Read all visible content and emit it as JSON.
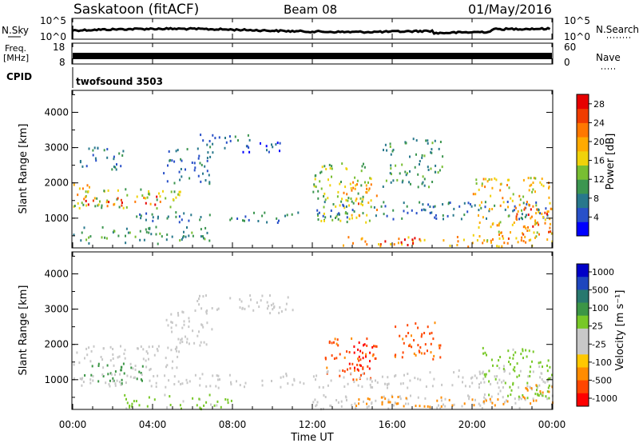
{
  "header": {
    "radar": "Saskatoon (fitACF)",
    "beam": "Beam 08",
    "date": "01/May/2016"
  },
  "strip": {
    "nsky_label": "N.Sky",
    "nsky_ticks": [
      "10^5",
      "10^0"
    ],
    "nsearch_label": "N.Search",
    "nsearch_ticks": [
      "10^5",
      "10^0"
    ],
    "freq_label": "Freq.",
    "freq_unit": "[MHz]",
    "freq_ticks": [
      "18",
      "8"
    ],
    "nave_label": "Nave",
    "nave_ticks": [
      "60",
      "0"
    ],
    "cpid_label": "CPID",
    "cpid_value": "twofsound 3503"
  },
  "colors": {
    "power_scale": [
      "#0000ff",
      "#2850c8",
      "#28788c",
      "#3c9650",
      "#78be32",
      "#f0d20a",
      "#ffaa00",
      "#ff7800",
      "#f03c00",
      "#e60000"
    ],
    "velocity_scale": [
      "#0000c8",
      "#1e46be",
      "#28786e",
      "#3c9646",
      "#78c828",
      "#c8c8c8",
      "#c8c8c8",
      "#ffc800",
      "#ff8c00",
      "#ff4600",
      "#ff0000"
    ]
  },
  "chart_data": [
    {
      "type": "heatmap",
      "name": "power",
      "ylabel": "Slant Range [km]",
      "yticks": [
        "1000",
        "2000",
        "3000",
        "4000"
      ],
      "ylim": [
        180,
        4600
      ],
      "colorbar_label": "Power [dB]",
      "colorbar_ticks": [
        "4",
        "8",
        "12",
        "16",
        "20",
        "24",
        "28"
      ],
      "colorbar_range": [
        0,
        30
      ],
      "regions": [
        {
          "t": [
            0.0,
            5.4
          ],
          "r": [
            1300,
            1900
          ],
          "v": 14
        },
        {
          "t": [
            0.5,
            4.5
          ],
          "r": [
            1350,
            1650
          ],
          "v": 24
        },
        {
          "t": [
            0.0,
            1.0
          ],
          "r": [
            1500,
            2000
          ],
          "v": 20
        },
        {
          "t": [
            0.3,
            2.5
          ],
          "r": [
            2400,
            3100
          ],
          "v": 8
        },
        {
          "t": [
            4.5,
            7.0
          ],
          "r": [
            2000,
            3000
          ],
          "v": 6
        },
        {
          "t": [
            6.2,
            9.0
          ],
          "r": [
            3000,
            3450
          ],
          "v": 7
        },
        {
          "t": [
            8.5,
            11.0
          ],
          "r": [
            2900,
            3200
          ],
          "v": 5
        },
        {
          "t": [
            3.0,
            11.5
          ],
          "r": [
            900,
            1200
          ],
          "v": 8
        },
        {
          "t": [
            0.0,
            7.0
          ],
          "r": [
            300,
            800
          ],
          "v": 10
        },
        {
          "t": [
            12.0,
            15.0
          ],
          "r": [
            900,
            2600
          ],
          "v": 14
        },
        {
          "t": [
            13.5,
            15.2
          ],
          "r": [
            1100,
            2100
          ],
          "v": 20
        },
        {
          "t": [
            15.5,
            18.5
          ],
          "r": [
            1900,
            3300
          ],
          "v": 10
        },
        {
          "t": [
            12.0,
            24.0
          ],
          "r": [
            1000,
            1500
          ],
          "v": 7
        },
        {
          "t": [
            13.5,
            24.0
          ],
          "r": [
            220,
            500
          ],
          "v": 20
        },
        {
          "t": [
            15.5,
            17.5
          ],
          "r": [
            250,
            480
          ],
          "v": 27
        },
        {
          "t": [
            20.0,
            24.0
          ],
          "r": [
            400,
            2200
          ],
          "v": 18
        },
        {
          "t": [
            22.0,
            24.0
          ],
          "r": [
            500,
            1300
          ],
          "v": 24
        }
      ]
    },
    {
      "type": "heatmap",
      "name": "velocity",
      "ylabel": "Slant Range [km]",
      "yticks": [
        "1000",
        "2000",
        "3000",
        "4000"
      ],
      "ylim": [
        180,
        4600
      ],
      "xlabel": "Time UT",
      "xticks": [
        "00:00",
        "04:00",
        "08:00",
        "12:00",
        "16:00",
        "20:00",
        "00:00"
      ],
      "xlim": [
        0,
        24
      ],
      "colorbar_label": "Velocity [m s⁻¹]",
      "colorbar_ticks": [
        "1000",
        "500",
        "100",
        "25",
        "-25",
        "-100",
        "-500",
        "-1000"
      ],
      "regions": [
        {
          "t": [
            0.0,
            5.4
          ],
          "r": [
            1300,
            2000
          ],
          "v": 0
        },
        {
          "t": [
            0.5,
            3.5
          ],
          "r": [
            900,
            1500
          ],
          "v": 150
        },
        {
          "t": [
            4.5,
            7.0
          ],
          "r": [
            2000,
            3000
          ],
          "v": 0
        },
        {
          "t": [
            6.2,
            11.0
          ],
          "r": [
            2900,
            3450
          ],
          "v": 0
        },
        {
          "t": [
            0.0,
            12.0
          ],
          "r": [
            800,
            1200
          ],
          "v": 0
        },
        {
          "t": [
            2.0,
            8.0
          ],
          "r": [
            200,
            600
          ],
          "v": 60
        },
        {
          "t": [
            12.5,
            15.2
          ],
          "r": [
            1000,
            2200
          ],
          "v": -300
        },
        {
          "t": [
            13.8,
            15.0
          ],
          "r": [
            1200,
            2100
          ],
          "v": -800
        },
        {
          "t": [
            16.0,
            18.5
          ],
          "r": [
            1600,
            2700
          ],
          "v": -300
        },
        {
          "t": [
            12.0,
            24.0
          ],
          "r": [
            800,
            1300
          ],
          "v": 0
        },
        {
          "t": [
            12.0,
            24.0
          ],
          "r": [
            200,
            600
          ],
          "v": 40
        },
        {
          "t": [
            14.0,
            22.0
          ],
          "r": [
            250,
            550
          ],
          "v": -150
        },
        {
          "t": [
            20.5,
            24.0
          ],
          "r": [
            500,
            2000
          ],
          "v": 60
        },
        {
          "t": [
            22.5,
            24.0
          ],
          "r": [
            300,
            900
          ],
          "v": -200
        }
      ]
    }
  ]
}
